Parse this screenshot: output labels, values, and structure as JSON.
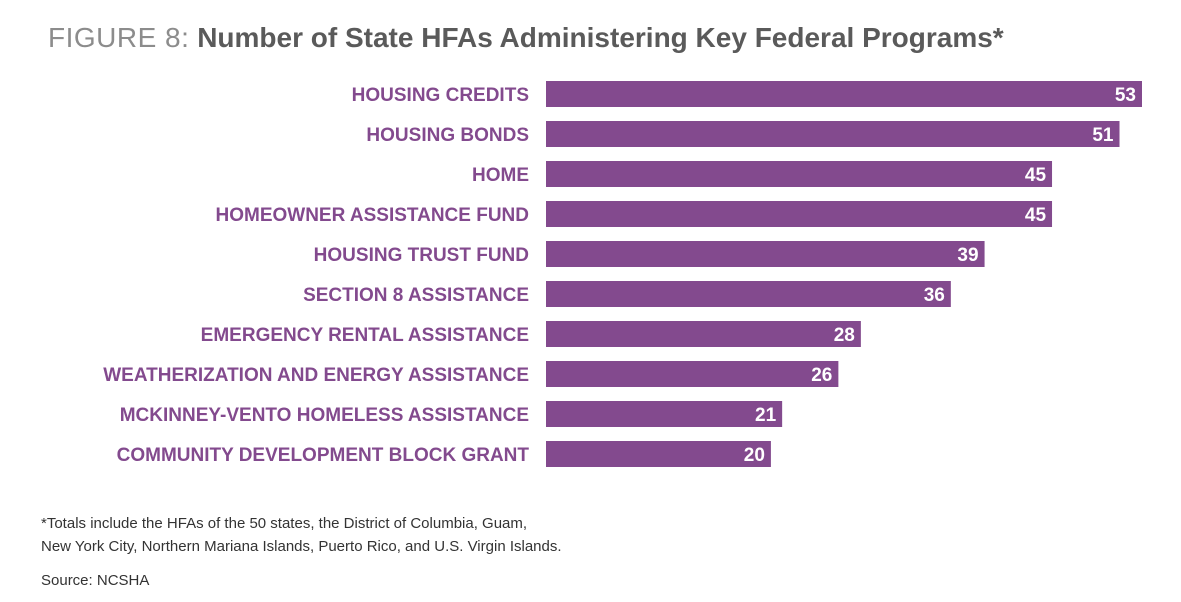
{
  "title_prefix": "FIGURE 8:",
  "title_main": "Number of State HFAs Administering Key Federal Programs*",
  "footnote_line1": "*Totals include the HFAs of the 50 states, the District of Columbia, Guam,",
  "footnote_line2": "New York City, Northern Mariana Islands, Puerto Rico, and U.S. Virgin Islands.",
  "source": "Source: NCSHA",
  "colors": {
    "bar": "#834a8e",
    "label": "#834a8e",
    "value_text": "#ffffff"
  },
  "chart_data": {
    "type": "bar",
    "orientation": "horizontal",
    "categories": [
      "HOUSING CREDITS",
      "HOUSING BONDS",
      "HOME",
      "HOMEOWNER ASSISTANCE FUND",
      "HOUSING TRUST FUND",
      "SECTION 8 ASSISTANCE",
      "EMERGENCY RENTAL ASSISTANCE",
      "WEATHERIZATION AND ENERGY ASSISTANCE",
      "MCKINNEY-VENTO HOMELESS ASSISTANCE",
      "COMMUNITY DEVELOPMENT BLOCK GRANT"
    ],
    "values": [
      53,
      51,
      45,
      45,
      39,
      36,
      28,
      26,
      21,
      20
    ],
    "xlim": [
      0,
      53
    ],
    "grid": false,
    "legend": "none"
  }
}
